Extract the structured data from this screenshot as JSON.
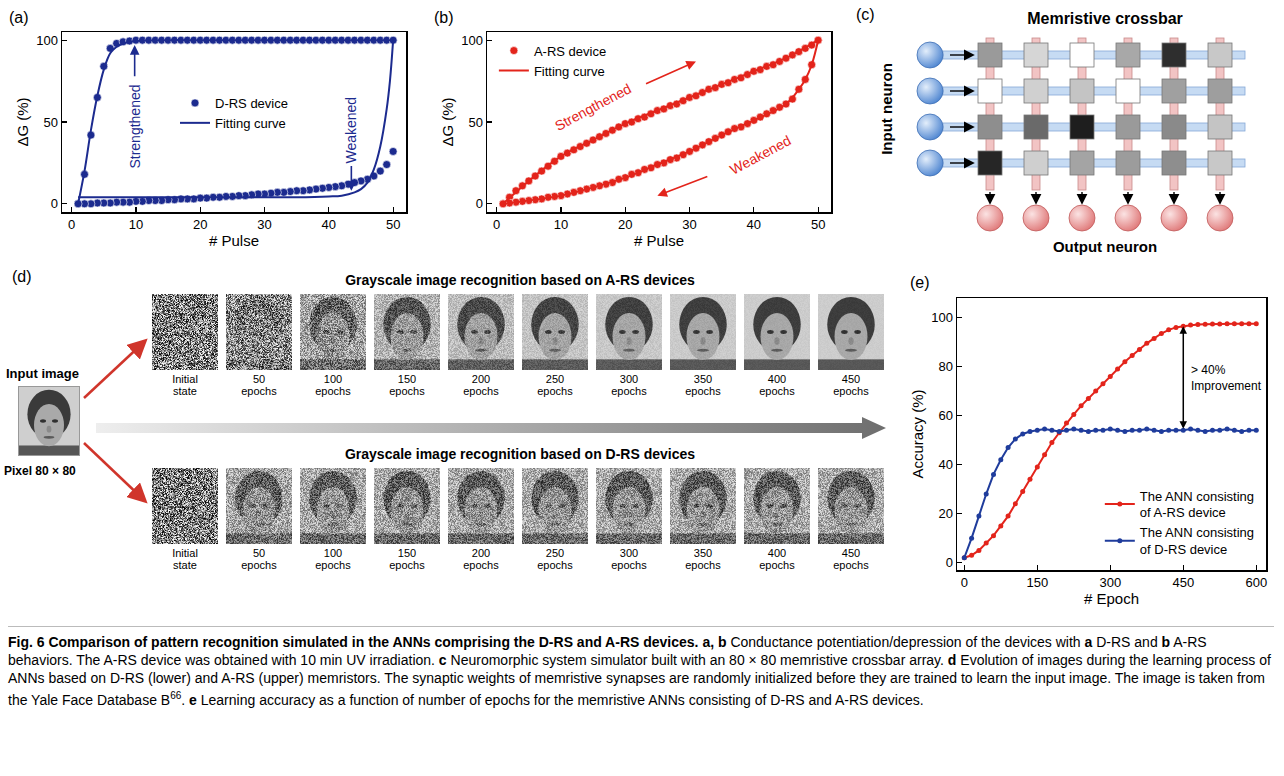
{
  "chart_data": [
    {
      "label": "(a)",
      "type": "scatter",
      "x_label": "# Pulse",
      "y_label": "ΔG (%)",
      "xlim": [
        -1.5,
        52
      ],
      "xticks": [
        0,
        10,
        20,
        30,
        40,
        50
      ],
      "ylim": [
        -5,
        105
      ],
      "yticks": [
        0,
        50,
        100
      ],
      "legend": "center",
      "annotations": [
        {
          "text": "Strengthened"
        },
        {
          "text": "Weakened"
        }
      ],
      "series": [
        {
          "name": "D-RS device",
          "type": "scatter",
          "marker": "circle",
          "color": "#1c2b8f",
          "x": [
            1,
            2,
            3,
            4,
            5,
            6,
            7,
            8,
            9,
            10,
            11,
            12,
            13,
            14,
            15,
            16,
            17,
            18,
            19,
            20,
            21,
            22,
            23,
            24,
            25,
            26,
            27,
            28,
            29,
            30,
            31,
            32,
            33,
            34,
            35,
            36,
            37,
            38,
            39,
            40,
            41,
            42,
            43,
            44,
            45,
            46,
            47,
            48,
            49,
            50,
            50,
            49,
            48,
            47,
            46,
            45,
            44,
            43,
            42,
            41,
            40,
            39,
            38,
            37,
            36,
            35,
            34,
            33,
            32,
            31,
            30,
            29,
            28,
            27,
            26,
            25,
            24,
            23,
            22,
            21,
            20,
            19,
            18,
            17,
            16,
            15,
            14,
            13,
            12,
            11,
            10,
            9,
            8,
            7,
            6,
            5,
            4,
            3,
            2,
            1
          ],
          "values": [
            0,
            18,
            42,
            65,
            84,
            95,
            98,
            99,
            99.5,
            100,
            100,
            100,
            100,
            100,
            100,
            100,
            100,
            100,
            100,
            100,
            100,
            100,
            100,
            100,
            100,
            100,
            100,
            100,
            100,
            100,
            100,
            100,
            100,
            100,
            100,
            100,
            100,
            100,
            100,
            100,
            100,
            100,
            100,
            100,
            100,
            100,
            100,
            100,
            100,
            100,
            32,
            24,
            20,
            17,
            15,
            14,
            13,
            12,
            11,
            10.5,
            10,
            9.5,
            9,
            8.5,
            8,
            8,
            7.5,
            7,
            7,
            6.5,
            6,
            6,
            5.5,
            5,
            5,
            4.5,
            4.5,
            4,
            4,
            3.5,
            3.5,
            3,
            3,
            3,
            2.5,
            2.5,
            2,
            2,
            2,
            1.5,
            1.5,
            1,
            1,
            1,
            0.5,
            0.5,
            0.5,
            0,
            0,
            0
          ]
        },
        {
          "name": "Fitting curve",
          "type": "line",
          "line_style": "solid",
          "color": "#1c2b8f",
          "x": [
            1,
            2,
            3,
            4,
            5,
            6,
            7,
            8,
            10,
            15,
            20,
            30,
            40,
            50,
            null,
            50,
            49.5,
            49,
            48,
            47,
            46,
            45,
            44,
            42,
            40,
            35,
            30,
            20,
            10,
            1
          ],
          "values": [
            0,
            20,
            45,
            66,
            82,
            92,
            96,
            98,
            99.5,
            100,
            100,
            100,
            100,
            100,
            null,
            100,
            75,
            58,
            35,
            21,
            13,
            9,
            7,
            5,
            4.5,
            4,
            4,
            4,
            4,
            4
          ]
        }
      ]
    },
    {
      "label": "(b)",
      "type": "scatter",
      "x_label": "# Pulse",
      "y_label": "ΔG (%)",
      "xlim": [
        -1.5,
        52
      ],
      "xticks": [
        0,
        10,
        20,
        30,
        40,
        50
      ],
      "ylim": [
        -5,
        105
      ],
      "yticks": [
        0,
        50,
        100
      ],
      "legend": "top left",
      "annotations": [
        {
          "text": "Strengthened"
        },
        {
          "text": "Weakened"
        }
      ],
      "series": [
        {
          "name": "A-RS device",
          "type": "scatter",
          "marker": "circle",
          "color": "#e3241b",
          "x": [
            1,
            2,
            3,
            4,
            5,
            6,
            7,
            8,
            9,
            10,
            11,
            12,
            13,
            14,
            15,
            16,
            17,
            18,
            19,
            20,
            21,
            22,
            23,
            24,
            25,
            26,
            27,
            28,
            29,
            30,
            31,
            32,
            33,
            34,
            35,
            36,
            37,
            38,
            39,
            40,
            41,
            42,
            43,
            44,
            45,
            46,
            47,
            48,
            49,
            50,
            50,
            49,
            48,
            47,
            46,
            45,
            44,
            43,
            42,
            41,
            40,
            39,
            38,
            37,
            36,
            35,
            34,
            33,
            32,
            31,
            30,
            29,
            28,
            27,
            26,
            25,
            24,
            23,
            22,
            21,
            20,
            19,
            18,
            17,
            16,
            15,
            14,
            13,
            12,
            11,
            10,
            9,
            8,
            7,
            6,
            5,
            4,
            3,
            2,
            1
          ],
          "values": [
            0,
            4,
            8,
            11,
            14,
            17,
            20,
            23,
            26,
            29,
            31,
            33,
            35,
            37,
            39,
            41,
            43,
            45,
            47,
            49,
            50,
            52,
            53,
            55,
            57,
            58,
            60,
            61,
            63,
            65,
            66,
            68,
            70,
            71,
            73,
            74,
            76,
            77,
            79,
            81,
            82,
            84,
            85,
            87,
            89,
            91,
            93,
            95,
            97,
            100,
            100,
            85,
            76,
            70,
            64,
            61,
            59,
            57,
            55,
            53,
            51,
            49,
            47,
            46,
            44,
            42,
            40,
            38,
            36,
            34,
            32,
            30,
            28,
            27,
            25,
            24,
            22,
            21,
            19,
            18,
            16,
            15,
            13,
            12,
            11,
            10,
            9,
            8,
            7,
            6,
            5,
            4.5,
            4,
            3,
            2.5,
            2,
            1.5,
            1,
            0.5,
            0
          ]
        },
        {
          "name": "Fitting curve",
          "type": "line",
          "line_style": "solid",
          "color": "#e3241b",
          "x": [
            1,
            5,
            10,
            15,
            20,
            25,
            30,
            35,
            40,
            45,
            50,
            null,
            50,
            49,
            48,
            47,
            45,
            40,
            35,
            30,
            25,
            20,
            15,
            10,
            5,
            1
          ],
          "values": [
            0,
            14,
            29,
            39,
            49,
            57,
            65,
            73,
            81,
            89,
            100,
            null,
            100,
            85,
            76,
            70,
            61,
            51,
            42,
            32,
            24,
            16,
            10,
            5,
            2,
            0
          ]
        }
      ]
    },
    {
      "label": "(e)",
      "type": "line",
      "x_label": "# Epoch",
      "y_label": "Accuracy (%)",
      "xlim": [
        -15,
        620
      ],
      "xticks": [
        0,
        150,
        300,
        450,
        600
      ],
      "ylim": [
        -3,
        108
      ],
      "yticks": [
        0,
        20,
        40,
        60,
        80,
        100
      ],
      "legend": "bottom right",
      "annotations": [
        {
          "text": [
            "> 40%",
            "Improvement"
          ],
          "x": 450
        }
      ],
      "x": [
        0,
        15,
        30,
        45,
        60,
        75,
        90,
        105,
        120,
        135,
        150,
        165,
        180,
        195,
        210,
        225,
        240,
        255,
        270,
        285,
        300,
        315,
        330,
        345,
        360,
        375,
        390,
        405,
        420,
        435,
        450,
        465,
        480,
        495,
        510,
        525,
        540,
        555,
        570,
        585,
        600
      ],
      "series": [
        {
          "name": "The ANN consisting of A-RS device",
          "marker": "circle",
          "color": "#e3241b",
          "values": [
            2,
            3,
            5,
            8,
            11,
            15,
            19,
            24,
            29,
            34,
            39,
            44,
            49,
            53,
            57,
            60.5,
            64,
            67,
            70,
            73,
            76,
            79,
            82,
            84.5,
            87,
            89.5,
            91.5,
            93.5,
            95,
            96,
            96.5,
            97,
            97.2,
            97.3,
            97.4,
            97.4,
            97.5,
            97.5,
            97.5,
            97.5,
            97.5
          ]
        },
        {
          "name": "The ANN consisting of D-RS device",
          "marker": "circle",
          "color": "#1f3c9c",
          "values": [
            2,
            10,
            19,
            28,
            36,
            42,
            47,
            50.5,
            52.5,
            53.5,
            54,
            54.5,
            54,
            53.5,
            54,
            54.5,
            54,
            53.5,
            54,
            54,
            54.5,
            54,
            53.5,
            54,
            54,
            54.5,
            54,
            53.5,
            54,
            54,
            54,
            54.5,
            54,
            53.5,
            54,
            54,
            54.5,
            54,
            53.5,
            54,
            54
          ]
        }
      ]
    }
  ],
  "crossbar": {
    "label": "(c)",
    "title": "Memristive crossbar",
    "input_label": "Input neuron",
    "output_label": "Output neuron",
    "rows": 4,
    "columns": 6
  },
  "image_panel": {
    "label": "(d)",
    "input": {
      "title": "Input image",
      "size": "Pixel 80 × 80"
    },
    "rows": [
      {
        "title": "Grayscale image recognition based on A-RS devices",
        "frames": [
          "Initial state",
          "50 epochs",
          "100 epochs",
          "150 epochs",
          "200 epochs",
          "250 epochs",
          "300 epochs",
          "350 epochs",
          "400 epochs",
          "450 epochs"
        ]
      },
      {
        "title": "Grayscale image recognition based on D-RS devices",
        "frames": [
          "Initial state",
          "50 epochs",
          "100 epochs",
          "150 epochs",
          "200 epochs",
          "250 epochs",
          "300 epochs",
          "350 epochs",
          "400 epochs",
          "450 epochs"
        ]
      }
    ]
  },
  "caption": {
    "segments": [
      {
        "text": "Fig. 6 Comparison of pattern recognition simulated in the ANNs comprising the D-RS and A-RS devices.",
        "bold": true
      },
      {
        "text": " "
      },
      {
        "text": "a, b",
        "bold": true
      },
      {
        "text": " Conductance potentiation/depression of the devices with "
      },
      {
        "text": "a",
        "bold": true
      },
      {
        "text": " D-RS and "
      },
      {
        "text": "b",
        "bold": true
      },
      {
        "text": " A-RS behaviors. The A-RS device was obtained with 10 min UV irradiation. "
      },
      {
        "text": "c",
        "bold": true
      },
      {
        "text": " Neuromorphic system simulator built with an 80 × 80 memristive crossbar array. "
      },
      {
        "text": "d",
        "bold": true
      },
      {
        "text": " Evolution of images during the learning process of ANNs based on D-RS (lower) and A-RS (upper) memristors. The synaptic weights of memristive synapses are randomly initialized before they are trained to learn the input image. The image is taken from the Yale Face Database B"
      },
      {
        "text": "66",
        "sup": true
      },
      {
        "text": ". "
      },
      {
        "text": "e",
        "bold": true
      },
      {
        "text": " Learning accuracy as a function of number of epochs for the memristive ANNs consisting of D-RS and A-RS devices."
      }
    ]
  }
}
